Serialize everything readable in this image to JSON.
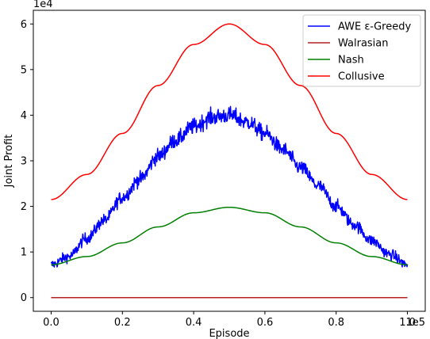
{
  "chart_data": {
    "type": "line",
    "xlabel": "Episode",
    "ylabel": "Joint Profit",
    "x_exponent_label": "1e5",
    "y_exponent_label": "1e4",
    "xlim": [
      -0.05,
      1.05
    ],
    "ylim": [
      -0.3,
      6.3
    ],
    "xticks": [
      0.0,
      0.2,
      0.4,
      0.6,
      0.8,
      1.0
    ],
    "xtick_labels": [
      "0.0",
      "0.2",
      "0.4",
      "0.6",
      "0.8",
      "1.0"
    ],
    "yticks": [
      0,
      1,
      2,
      3,
      4,
      5,
      6
    ],
    "ytick_labels": [
      "0",
      "1",
      "2",
      "3",
      "4",
      "5",
      "6"
    ],
    "legend_position": "top-right",
    "series": [
      {
        "name": "AWE ε-Greedy",
        "color": "#0000ff",
        "noisy": true,
        "x": [
          0.0,
          0.05,
          0.1,
          0.15,
          0.2,
          0.25,
          0.3,
          0.35,
          0.4,
          0.45,
          0.5,
          0.55,
          0.6,
          0.65,
          0.7,
          0.75,
          0.8,
          0.85,
          0.9,
          0.95,
          1.0
        ],
        "y": [
          0.72,
          0.9,
          1.3,
          1.7,
          2.2,
          2.6,
          3.1,
          3.45,
          3.75,
          3.95,
          4.0,
          3.85,
          3.6,
          3.25,
          2.85,
          2.45,
          2.0,
          1.6,
          1.25,
          0.95,
          0.72
        ]
      },
      {
        "name": "Walrasian",
        "color": "#b22222",
        "x": [
          0.0,
          1.0
        ],
        "y": [
          0.0,
          0.0
        ]
      },
      {
        "name": "Nash",
        "color": "#008000",
        "x": [
          0.0,
          0.1,
          0.2,
          0.3,
          0.4,
          0.5,
          0.6,
          0.7,
          0.8,
          0.9,
          1.0
        ],
        "y": [
          0.72,
          0.9,
          1.2,
          1.55,
          1.86,
          1.98,
          1.86,
          1.55,
          1.2,
          0.9,
          0.72
        ]
      },
      {
        "name": "Collusive",
        "color": "#ff0000",
        "x": [
          0.0,
          0.1,
          0.2,
          0.3,
          0.4,
          0.5,
          0.6,
          0.7,
          0.8,
          0.9,
          1.0
        ],
        "y": [
          2.15,
          2.7,
          3.6,
          4.65,
          5.55,
          6.0,
          5.55,
          4.65,
          3.6,
          2.7,
          2.15
        ]
      }
    ]
  }
}
